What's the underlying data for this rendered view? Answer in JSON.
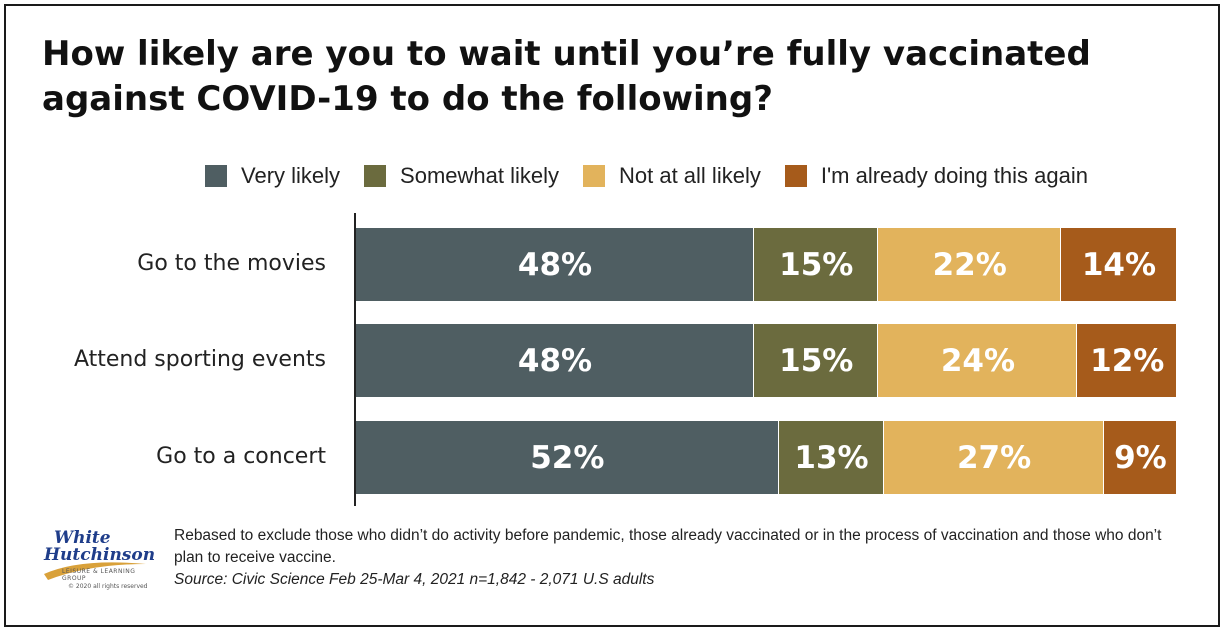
{
  "title": "How likely are you to wait until you’re fully vaccinated against COVID-19 to do the following?",
  "legend": [
    {
      "label": "Very likely",
      "color": "#4f5e62"
    },
    {
      "label": "Somewhat likely",
      "color": "#6b6b3e"
    },
    {
      "label": "Not at all likely",
      "color": "#e2b35c"
    },
    {
      "label": "I'm already doing this again",
      "color": "#a65b1b"
    }
  ],
  "chart_data": {
    "type": "bar",
    "orientation": "horizontal-stacked",
    "categories": [
      "Go to the movies",
      "Attend sporting events",
      "Go to a concert"
    ],
    "series": [
      {
        "name": "Very likely",
        "values": [
          48,
          48,
          52
        ],
        "color": "#4f5e62"
      },
      {
        "name": "Somewhat likely",
        "values": [
          15,
          15,
          13
        ],
        "color": "#6b6b3e"
      },
      {
        "name": "Not at all likely",
        "values": [
          22,
          24,
          27
        ],
        "color": "#e2b35c"
      },
      {
        "name": "I'm already doing this again",
        "values": [
          14,
          12,
          9
        ],
        "color": "#a65b1b"
      }
    ],
    "value_suffix": "%",
    "legend_position": "top",
    "grid": false
  },
  "footnote": {
    "note": "Rebased to exclude those who didn’t do activity before pandemic, those already vaccinated or in the process of vaccination and those who don’t plan to receive vaccine.",
    "source": "Source: Civic Science Feb 25-Mar 4, 2021 n=1,842 - 2,071 U.S adults"
  },
  "logo": {
    "line1": "White",
    "line2": "Hutchinson",
    "tagline": "LEISURE & LEARNING GROUP",
    "copyright": "© 2020 all rights reserved"
  }
}
